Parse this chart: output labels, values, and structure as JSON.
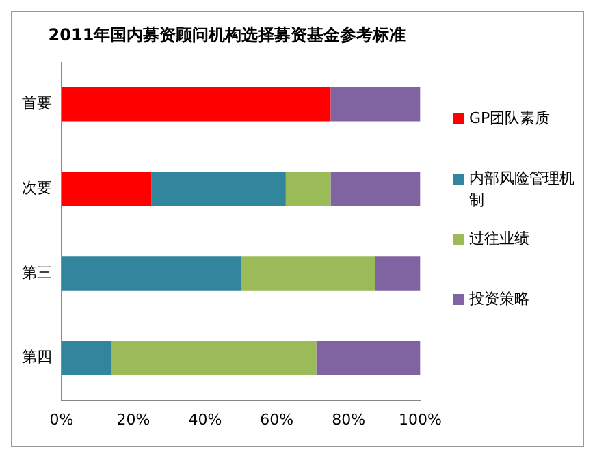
{
  "chart_data": {
    "type": "bar",
    "title": "2011年国内募资顾问机构选择募资基金参考标准",
    "orientation": "horizontal",
    "stacked": true,
    "categories": [
      "首要",
      "次要",
      "第三",
      "第四"
    ],
    "series": [
      {
        "name": "GP团队素质",
        "color": "#ff0000",
        "values": [
          75,
          25,
          0,
          0
        ]
      },
      {
        "name": "内部风险管理机制",
        "color": "#31859c",
        "values": [
          0,
          37.5,
          50,
          14
        ]
      },
      {
        "name": "过往业绩",
        "color": "#9bbb59",
        "values": [
          0,
          12.5,
          37.5,
          57
        ]
      },
      {
        "name": "投资策略",
        "color": "#8064a2",
        "values": [
          25,
          25,
          12.5,
          29
        ]
      }
    ],
    "xlim": [
      0,
      100
    ],
    "xticks": [
      {
        "value": 0,
        "label": "0%"
      },
      {
        "value": 20,
        "label": "20%"
      },
      {
        "value": 40,
        "label": "40%"
      },
      {
        "value": 60,
        "label": "60%"
      },
      {
        "value": 80,
        "label": "80%"
      },
      {
        "value": 100,
        "label": "100%"
      }
    ],
    "grid": false,
    "legend": "right"
  }
}
